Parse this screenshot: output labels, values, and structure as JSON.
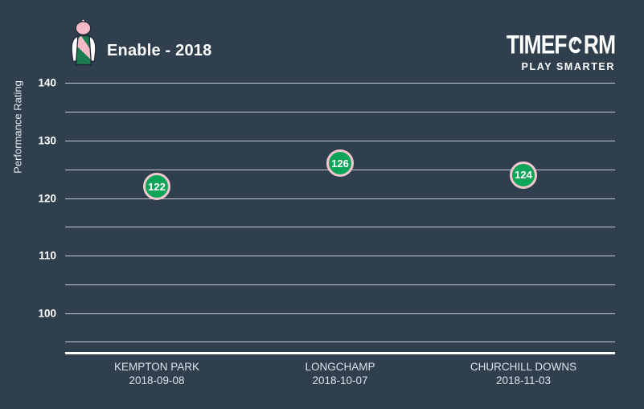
{
  "header": {
    "title": "Enable - 2018"
  },
  "logo": {
    "brand_left": "TIMEF",
    "brand_right": "RM",
    "brand_full": "TIMEFORM",
    "tagline": "PLAY SMARTER"
  },
  "chart_data": {
    "type": "scatter",
    "title": "Enable - 2018",
    "ylabel": "Performance Rating",
    "ylim": [
      95,
      140
    ],
    "grid_step": 5,
    "yticks": [
      140,
      130,
      120,
      110,
      100
    ],
    "grid": true,
    "legend_position": "none",
    "categories": [
      {
        "venue": "KEMPTON PARK",
        "date": "2018-09-08",
        "rating": 122
      },
      {
        "venue": "LONGCHAMP",
        "date": "2018-10-07",
        "rating": 126
      },
      {
        "venue": "CHURCHILL DOWNS",
        "date": "2018-11-03",
        "rating": 124
      }
    ]
  },
  "colors": {
    "background": "#2f3f4e",
    "marker_fill": "#0da658",
    "marker_border": "#f2c6ce",
    "marker_label": "#ffffff",
    "gridline": "rgba(255,255,255,0.72)",
    "axis_line": "#ffffff",
    "silks_green": "#1c7b50",
    "silks_pink": "#f5bac7",
    "silks_white": "#ffffff"
  }
}
